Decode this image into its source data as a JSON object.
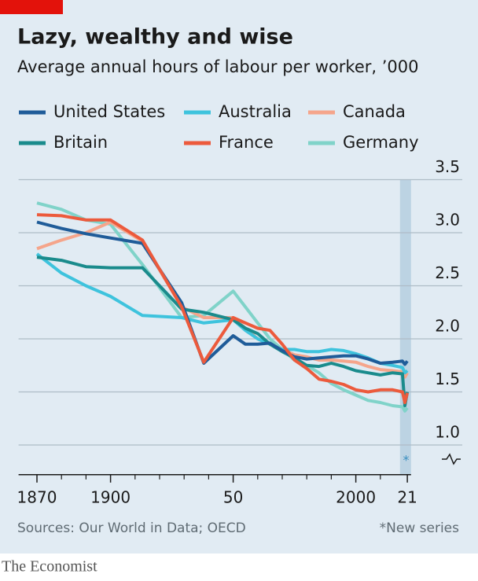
{
  "chart_data": {
    "type": "line",
    "title": "Lazy, wealthy and wise",
    "subtitle": "Average annual hours of labour per worker, ’000",
    "source": "Sources: Our World in Data; OECD",
    "note": "*New series",
    "annotation": "*",
    "brand": "The Economist",
    "x": [
      1870,
      1880,
      1890,
      1900,
      1913,
      1929,
      1938,
      1950,
      1955,
      1960,
      1965,
      1970,
      1975,
      1980,
      1985,
      1990,
      1995,
      2000,
      2005,
      2010,
      2015,
      2019,
      2020,
      2021
    ],
    "series": [
      {
        "name": "United States",
        "color": "#1f5c99",
        "values": [
          3.1,
          3.04,
          2.99,
          2.95,
          2.9,
          2.34,
          1.77,
          2.03,
          1.95,
          1.95,
          1.96,
          1.89,
          1.83,
          1.81,
          1.82,
          1.83,
          1.84,
          1.84,
          1.81,
          1.77,
          1.78,
          1.79,
          1.76,
          1.79
        ]
      },
      {
        "name": "Australia",
        "color": "#3ec3dd",
        "values": [
          2.8,
          2.62,
          2.5,
          2.4,
          2.22,
          2.2,
          2.15,
          2.18,
          2.08,
          2.0,
          1.95,
          1.9,
          1.9,
          1.88,
          1.88,
          1.9,
          1.89,
          1.86,
          1.82,
          1.77,
          1.75,
          1.73,
          1.68,
          1.7
        ]
      },
      {
        "name": "Canada",
        "color": "#f5a58b",
        "values": [
          2.85,
          2.93,
          3.0,
          3.1,
          2.92,
          2.3,
          2.2,
          2.2,
          2.1,
          2.0,
          1.95,
          1.9,
          1.85,
          1.83,
          1.8,
          1.8,
          1.79,
          1.78,
          1.74,
          1.71,
          1.7,
          1.69,
          1.64,
          1.68
        ]
      },
      {
        "name": "Britain",
        "color": "#1a8b8c",
        "values": [
          2.77,
          2.74,
          2.68,
          2.67,
          2.67,
          2.28,
          2.25,
          2.18,
          2.1,
          2.05,
          1.95,
          1.88,
          1.82,
          1.75,
          1.74,
          1.77,
          1.74,
          1.7,
          1.68,
          1.66,
          1.68,
          1.67,
          1.37,
          1.5
        ]
      },
      {
        "name": "France",
        "color": "#ec5a3c",
        "values": [
          3.17,
          3.16,
          3.12,
          3.12,
          2.93,
          2.3,
          1.78,
          2.2,
          2.15,
          2.1,
          2.08,
          1.95,
          1.8,
          1.72,
          1.62,
          1.6,
          1.57,
          1.52,
          1.5,
          1.52,
          1.52,
          1.5,
          1.4,
          1.49
        ]
      },
      {
        "name": "Germany",
        "color": "#80d3c9",
        "values": [
          3.28,
          3.22,
          3.12,
          3.08,
          2.7,
          2.2,
          2.22,
          2.45,
          2.3,
          2.15,
          2.0,
          1.9,
          1.8,
          1.75,
          1.68,
          1.58,
          1.52,
          1.47,
          1.42,
          1.4,
          1.37,
          1.36,
          1.32,
          1.35
        ]
      }
    ],
    "xlim": [
      1862.5,
      2022.5
    ],
    "xticks": [
      1870,
      1900,
      {
        "value": 1950,
        "label": "50"
      },
      2000,
      {
        "value": 2021,
        "label": "21"
      }
    ],
    "xminorticks": [
      1880,
      1890,
      1910,
      1920,
      1930,
      1940,
      1960,
      1970,
      1980,
      1990,
      2010
    ],
    "ylim": [
      0.72,
      3.5
    ],
    "yticks": [
      {
        "value": 1,
        "label": "1.0"
      },
      1.5,
      {
        "value": 2,
        "label": "2.0"
      },
      2.5,
      {
        "value": 3,
        "label": "3.0"
      },
      3.5
    ],
    "grid": true,
    "highlight_x": [
      2018,
      2022.5
    ],
    "legend": "top"
  }
}
